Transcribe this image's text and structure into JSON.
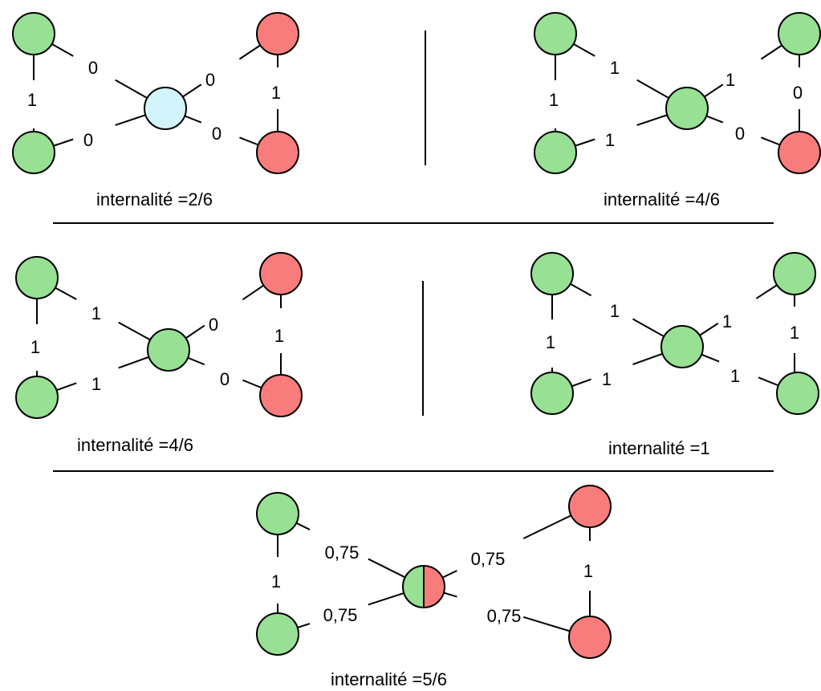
{
  "colors": {
    "green": "#97e094",
    "red": "#f97c7c",
    "blue": "#d3f4fb",
    "line": "#000000",
    "background": "#ffffff"
  },
  "panels": [
    {
      "id": "p1",
      "caption": "internalité =2/6",
      "nodes": {
        "tl": "green",
        "bl": "green",
        "c": "blue",
        "tr": "red",
        "br": "red"
      },
      "edges": {
        "left_vertical": "1",
        "tl_c": "0",
        "bl_c": "0",
        "c_tr": "0",
        "c_br": "0",
        "right_vertical": "1"
      }
    },
    {
      "id": "p2",
      "caption": "internalité =4/6",
      "nodes": {
        "tl": "green",
        "bl": "green",
        "c": "green",
        "tr": "green",
        "br": "red"
      },
      "edges": {
        "left_vertical": "1",
        "tl_c": "1",
        "bl_c": "1",
        "c_tr": "1",
        "c_br": "0",
        "right_vertical": "0"
      }
    },
    {
      "id": "p3",
      "caption": "internalité =4/6",
      "nodes": {
        "tl": "green",
        "bl": "green",
        "c": "green",
        "tr": "red",
        "br": "red"
      },
      "edges": {
        "left_vertical": "1",
        "tl_c": "1",
        "bl_c": "1",
        "c_tr": "0",
        "c_br": "0",
        "right_vertical": "1"
      }
    },
    {
      "id": "p4",
      "caption": "internalité =1",
      "nodes": {
        "tl": "green",
        "bl": "green",
        "c": "green",
        "tr": "green",
        "br": "green"
      },
      "edges": {
        "left_vertical": "1",
        "tl_c": "1",
        "bl_c": "1",
        "c_tr": "1",
        "c_br": "1",
        "right_vertical": "1"
      }
    },
    {
      "id": "p5",
      "caption": "internalité =5/6",
      "nodes": {
        "tl": "green",
        "bl": "green",
        "c": "split-green-red",
        "tr": "red",
        "br": "red"
      },
      "edges": {
        "left_vertical": "1",
        "tl_c": "0,75",
        "bl_c": "0,75",
        "c_tr": "0,75",
        "c_br": "0,75",
        "right_vertical": "1"
      }
    }
  ]
}
